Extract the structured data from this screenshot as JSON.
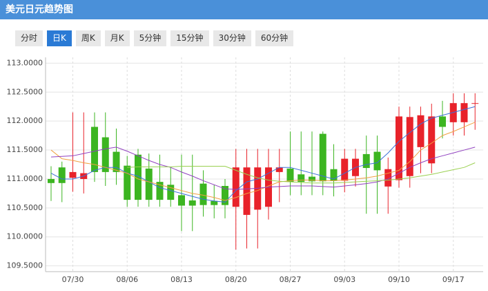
{
  "header": {
    "title": "美元日元趋势图"
  },
  "tabs": {
    "items": [
      "分时",
      "日K",
      "周K",
      "月K",
      "5分钟",
      "15分钟",
      "30分钟",
      "60分钟"
    ],
    "active": 1
  },
  "chart_data": {
    "type": "candlestick",
    "categories": [
      null,
      null,
      "07/30",
      null,
      null,
      null,
      null,
      "08/06",
      null,
      null,
      null,
      null,
      "08/13",
      null,
      null,
      null,
      null,
      "08/20",
      null,
      null,
      null,
      null,
      "08/27",
      null,
      null,
      null,
      null,
      "09/03",
      null,
      null,
      null,
      null,
      "09/10",
      null,
      null,
      null,
      null,
      "09/17",
      null,
      null
    ],
    "open": [
      111.0,
      111.2,
      111.02,
      111.0,
      111.9,
      111.72,
      111.47,
      111.23,
      111.42,
      111.18,
      110.95,
      110.9,
      110.72,
      110.63,
      110.92,
      110.62,
      110.88,
      110.52,
      110.38,
      110.47,
      110.52,
      111.12,
      111.18,
      111.08,
      111.04,
      111.78,
      111.17,
      110.97,
      111.05,
      111.43,
      111.47,
      110.87,
      110.98,
      111.05,
      111.55,
      111.27,
      112.08,
      111.98,
      111.98,
      112.3
    ],
    "close": [
      110.93,
      110.93,
      111.12,
      111.1,
      111.12,
      111.12,
      111.12,
      110.64,
      110.64,
      110.64,
      110.64,
      110.64,
      110.54,
      110.54,
      110.55,
      110.55,
      110.55,
      111.2,
      111.2,
      111.2,
      111.2,
      111.2,
      110.95,
      110.95,
      110.96,
      110.96,
      110.97,
      111.35,
      111.35,
      111.19,
      111.15,
      111.17,
      112.08,
      112.07,
      112.1,
      112.08,
      111.9,
      112.31,
      112.31,
      112.31
    ],
    "high": [
      111.22,
      111.3,
      112.15,
      112.15,
      112.15,
      112.15,
      111.87,
      111.4,
      111.52,
      111.44,
      111.42,
      111.2,
      111.42,
      111.42,
      111.15,
      110.9,
      111.0,
      111.52,
      111.52,
      111.52,
      111.52,
      111.52,
      111.82,
      111.82,
      111.82,
      111.82,
      111.6,
      111.52,
      111.52,
      111.75,
      111.75,
      111.37,
      112.25,
      112.25,
      112.25,
      112.3,
      112.35,
      112.48,
      112.48,
      112.48
    ],
    "low": [
      110.62,
      110.6,
      110.78,
      110.75,
      110.95,
      110.88,
      110.9,
      110.52,
      110.52,
      110.52,
      110.52,
      110.52,
      110.1,
      110.1,
      110.35,
      110.32,
      110.32,
      109.78,
      109.8,
      109.8,
      110.3,
      110.6,
      110.72,
      110.72,
      110.72,
      110.72,
      110.7,
      110.77,
      110.87,
      110.4,
      110.4,
      110.4,
      110.85,
      110.85,
      111.1,
      111.1,
      111.7,
      111.75,
      111.75,
      111.85
    ],
    "up_color": "#e8222a",
    "down_color": "#3cb521",
    "lines": [
      {
        "color": "#3c6fd8",
        "values": [
          111.1,
          111.0,
          111.0,
          111.05,
          111.15,
          111.2,
          111.2,
          111.1,
          111.05,
          110.95,
          110.85,
          110.8,
          110.75,
          110.7,
          110.65,
          110.62,
          110.6,
          110.8,
          110.95,
          111.0,
          111.1,
          111.2,
          111.2,
          111.15,
          111.1,
          111.05,
          111.0,
          111.1,
          111.2,
          111.25,
          111.28,
          111.45,
          111.65,
          111.8,
          111.95,
          112.05,
          112.1,
          112.15,
          112.2,
          112.25
        ]
      },
      {
        "color": "#f0a040",
        "values": [
          111.5,
          111.35,
          111.32,
          111.28,
          111.25,
          111.2,
          111.15,
          111.1,
          111.0,
          110.95,
          110.9,
          110.85,
          110.8,
          110.75,
          110.72,
          110.68,
          110.63,
          110.68,
          110.75,
          110.8,
          110.88,
          110.95,
          110.97,
          110.98,
          110.98,
          110.97,
          110.97,
          110.98,
          111.0,
          111.02,
          111.05,
          111.1,
          111.15,
          111.3,
          111.5,
          111.62,
          111.75,
          111.82,
          111.9,
          111.98
        ]
      },
      {
        "color": "#9040c0",
        "values": [
          111.38,
          111.39,
          111.4,
          111.44,
          111.48,
          111.52,
          111.55,
          111.48,
          111.4,
          111.32,
          111.25,
          111.2,
          111.12,
          111.05,
          110.97,
          110.9,
          110.83,
          110.82,
          110.83,
          110.84,
          110.86,
          110.87,
          110.88,
          110.88,
          110.88,
          110.87,
          110.86,
          110.88,
          110.9,
          110.92,
          110.95,
          111.0,
          111.1,
          111.2,
          111.28,
          111.35,
          111.4,
          111.45,
          111.5,
          111.55
        ]
      },
      {
        "color": "#9ad050",
        "values": [
          null,
          null,
          null,
          null,
          null,
          null,
          null,
          111.2,
          111.21,
          111.21,
          111.21,
          111.21,
          111.22,
          111.22,
          111.22,
          111.22,
          111.22,
          111.15,
          111.08,
          111.02,
          110.98,
          110.96,
          110.95,
          110.94,
          110.93,
          110.93,
          110.93,
          110.94,
          110.95,
          110.96,
          110.97,
          110.98,
          111.0,
          111.02,
          111.05,
          111.08,
          111.12,
          111.16,
          111.2,
          111.28
        ]
      }
    ],
    "ylim": [
      109.4,
      113.1
    ],
    "yticks": [
      {
        "value": 109.5,
        "label": "109.5000"
      },
      {
        "value": 110,
        "label": "110.0000"
      },
      {
        "value": 110.5,
        "label": "110.5000"
      },
      {
        "value": 111,
        "label": "111.0000"
      },
      {
        "value": 111.5,
        "label": "111.5000"
      },
      {
        "value": 112,
        "label": "112.0000"
      },
      {
        "value": 112.5,
        "label": "112.5000"
      },
      {
        "value": 113,
        "label": "113.0000"
      }
    ],
    "grid": true
  }
}
